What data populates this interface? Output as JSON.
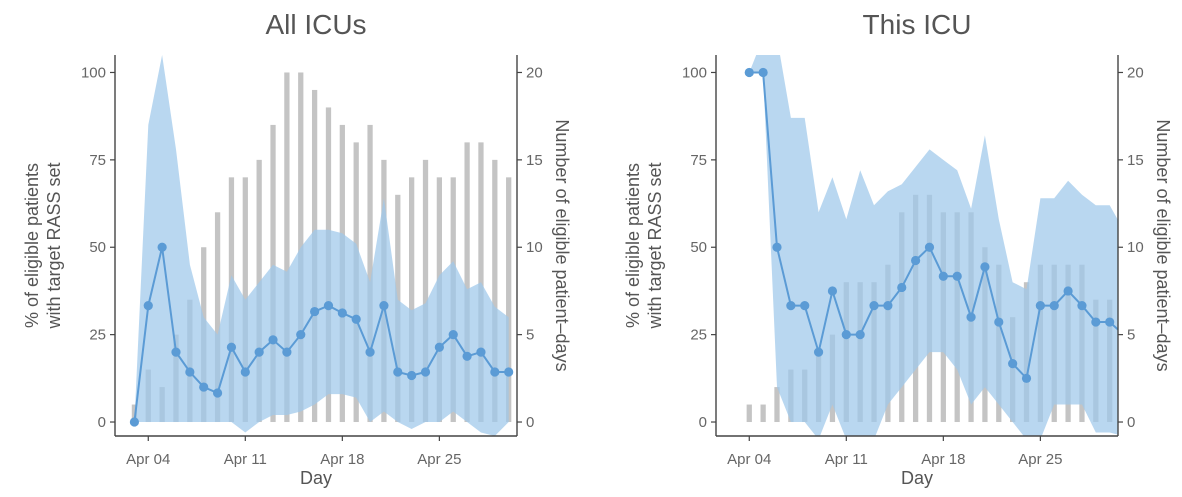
{
  "chart_data": [
    {
      "type": "line+bar",
      "title": "All ICUs",
      "xlabel": "Day",
      "ylabel_left": "% of eligible patients\nwith target RASS set",
      "ylabel_right": "Number of eligible patient–days",
      "x_ticks": [
        "Apr 04",
        "Apr 11",
        "Apr 18",
        "Apr 25"
      ],
      "x_tick_days": [
        4,
        11,
        18,
        25
      ],
      "xlim": [
        1.6,
        30.6
      ],
      "ylim_left": [
        -4,
        105
      ],
      "ylim_right": [
        -0.8,
        21
      ],
      "y_ticks_left": [
        0,
        25,
        50,
        75,
        100
      ],
      "y_ticks_right": [
        0,
        5,
        10,
        15,
        20
      ],
      "colors": {
        "line": "#5b9bd5",
        "band": "#9ec8ea",
        "bars": "#c4c4c4"
      },
      "bars": {
        "name": "Eligible patient-days",
        "x": [
          3,
          4,
          5,
          6,
          7,
          8,
          9,
          10,
          11,
          12,
          13,
          14,
          15,
          16,
          17,
          18,
          19,
          20,
          21,
          22,
          23,
          24,
          25,
          26,
          27,
          28,
          29,
          30
        ],
        "values": [
          1,
          3,
          2,
          5,
          7,
          10,
          12,
          14,
          14,
          15,
          17,
          20,
          20,
          19,
          18,
          17,
          16,
          17,
          15,
          13,
          14,
          15,
          14,
          14,
          16,
          16,
          15,
          14
        ]
      },
      "series": [
        {
          "name": "% with target RASS set",
          "x": [
            3,
            4,
            5,
            6,
            7,
            8,
            9,
            10,
            11,
            12,
            13,
            14,
            15,
            16,
            17,
            18,
            19,
            20,
            21,
            22,
            23,
            24,
            25,
            26,
            27,
            28,
            29,
            30
          ],
          "values": [
            0,
            33.3,
            50,
            20,
            14.3,
            10,
            8.3,
            21.4,
            14.3,
            20,
            23.5,
            20,
            25,
            31.6,
            33.3,
            31.2,
            29.4,
            20,
            33.3,
            14.3,
            13.3,
            14.3,
            21.4,
            25,
            18.8,
            20,
            14.3,
            14.3
          ],
          "ci_lower": [
            0,
            0,
            0,
            0,
            0,
            0,
            0,
            0,
            -3,
            0,
            2,
            2,
            3,
            5,
            8,
            8,
            7,
            0,
            3,
            0,
            -2,
            0,
            0,
            3,
            0,
            -3,
            -4,
            0
          ],
          "ci_upper": [
            0,
            85,
            105,
            78,
            45,
            30,
            25,
            42,
            35,
            40,
            45,
            43,
            50,
            55,
            55,
            54,
            51,
            40,
            64,
            35,
            32,
            34,
            42,
            46,
            38,
            40,
            33,
            30
          ]
        }
      ]
    },
    {
      "type": "line+bar",
      "title": "This ICU",
      "xlabel": "Day",
      "ylabel_left": "% of eligible patients\nwith target RASS set",
      "ylabel_right": "Number of eligible patient–days",
      "x_ticks": [
        "Apr 04",
        "Apr 11",
        "Apr 18",
        "Apr 25"
      ],
      "x_tick_days": [
        4,
        11,
        18,
        25
      ],
      "xlim": [
        1.6,
        30.6
      ],
      "ylim_left": [
        -4,
        105
      ],
      "ylim_right": [
        -0.8,
        21
      ],
      "y_ticks_left": [
        0,
        25,
        50,
        75,
        100
      ],
      "y_ticks_right": [
        0,
        5,
        10,
        15,
        20
      ],
      "colors": {
        "line": "#5b9bd5",
        "band": "#9ec8ea",
        "bars": "#c4c4c4"
      },
      "bars": {
        "name": "Eligible patient-days",
        "x": [
          4,
          5,
          6,
          7,
          8,
          9,
          10,
          11,
          12,
          13,
          14,
          15,
          16,
          17,
          18,
          19,
          20,
          21,
          22,
          23,
          24,
          25,
          26,
          27,
          28,
          29,
          30
        ],
        "values": [
          1,
          1,
          2,
          3,
          3,
          4,
          5,
          8,
          8,
          8,
          9,
          12,
          13,
          13,
          12,
          12,
          12,
          10,
          9,
          6,
          8,
          9,
          9,
          9,
          9,
          7,
          7
        ]
      },
      "series": [
        {
          "name": "% with target RASS set",
          "x": [
            4,
            5,
            6,
            7,
            8,
            9,
            10,
            11,
            12,
            13,
            14,
            15,
            16,
            17,
            18,
            19,
            20,
            21,
            22,
            23,
            24,
            25,
            26,
            27,
            28,
            29,
            30,
            31
          ],
          "values": [
            100,
            100,
            50,
            33.3,
            33.3,
            20,
            37.5,
            25,
            25,
            33.3,
            33.3,
            38.5,
            46.2,
            50,
            41.7,
            41.7,
            30,
            44.4,
            28.6,
            16.7,
            12.5,
            33.3,
            33.3,
            37.5,
            33.3,
            28.6,
            28.6,
            25
          ],
          "ci_lower": [
            100,
            100,
            10,
            0,
            0,
            -5,
            5,
            -5,
            -5,
            -5,
            5,
            10,
            15,
            20,
            20,
            15,
            5,
            10,
            5,
            0,
            -5,
            -5,
            5,
            5,
            5,
            -3,
            -3,
            -4
          ],
          "ci_upper": [
            100,
            110,
            110,
            87,
            87,
            60,
            70,
            58,
            72,
            62,
            66,
            68,
            73,
            78,
            75,
            72,
            61,
            82,
            58,
            40,
            38,
            64,
            64,
            69,
            65,
            62,
            62,
            55
          ]
        }
      ]
    }
  ]
}
